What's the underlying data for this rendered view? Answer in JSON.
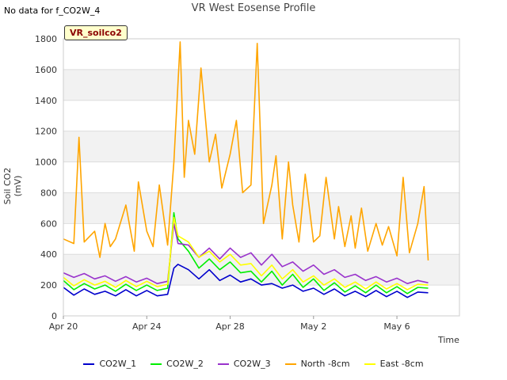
{
  "header": {
    "no_data_note": "No data for f_CO2W_4",
    "site_badge": "VR_soilco2"
  },
  "chart_data": {
    "type": "line",
    "title": "VR West Eosense Profile",
    "xlabel": "Time",
    "ylabel": "Soil CO2 (mV)",
    "xlim": [
      0,
      19
    ],
    "ylim": [
      0,
      1800
    ],
    "yticks": [
      0,
      200,
      400,
      600,
      800,
      1000,
      1200,
      1400,
      1600,
      1800
    ],
    "xticks": [
      {
        "pos": 0,
        "label": "Apr 20"
      },
      {
        "pos": 4,
        "label": "Apr 24"
      },
      {
        "pos": 8,
        "label": "Apr 28"
      },
      {
        "pos": 12,
        "label": "May 2"
      },
      {
        "pos": 16,
        "label": "May 6"
      }
    ],
    "grid": true,
    "legend_position": "bottom",
    "series": [
      {
        "name": "CO2W_1",
        "color": "#0000cc",
        "x": [
          0,
          0.5,
          1,
          1.5,
          2,
          2.5,
          3,
          3.5,
          4,
          4.5,
          5,
          5.3,
          5.5,
          6,
          6.5,
          7,
          7.5,
          8,
          8.5,
          9,
          9.5,
          10,
          10.5,
          11,
          11.5,
          12,
          12.5,
          13,
          13.5,
          14,
          14.5,
          15,
          15.5,
          16,
          16.5,
          17,
          17.5
        ],
        "y": [
          185,
          135,
          175,
          140,
          160,
          130,
          170,
          130,
          165,
          130,
          140,
          310,
          335,
          300,
          240,
          300,
          230,
          265,
          220,
          240,
          200,
          210,
          180,
          200,
          160,
          180,
          140,
          175,
          130,
          160,
          125,
          165,
          125,
          160,
          120,
          155,
          150
        ]
      },
      {
        "name": "CO2W_2",
        "color": "#00ee00",
        "x": [
          0,
          0.5,
          1,
          1.5,
          2,
          2.5,
          3,
          3.5,
          4,
          4.5,
          5,
          5.3,
          5.5,
          6,
          6.5,
          7,
          7.5,
          8,
          8.5,
          9,
          9.5,
          10,
          10.5,
          11,
          11.5,
          12,
          12.5,
          13,
          13.5,
          14,
          14.5,
          15,
          15.5,
          16,
          16.5,
          17,
          17.5
        ],
        "y": [
          230,
          170,
          210,
          175,
          200,
          160,
          205,
          165,
          200,
          165,
          180,
          670,
          500,
          420,
          310,
          370,
          300,
          350,
          280,
          290,
          220,
          290,
          200,
          270,
          185,
          240,
          165,
          215,
          155,
          195,
          150,
          200,
          150,
          190,
          145,
          185,
          180
        ]
      },
      {
        "name": "CO2W_3",
        "color": "#9933cc",
        "x": [
          0,
          0.5,
          1,
          1.5,
          2,
          2.5,
          3,
          3.5,
          4,
          4.5,
          5,
          5.3,
          5.5,
          6,
          6.5,
          7,
          7.5,
          8,
          8.5,
          9,
          9.5,
          10,
          10.5,
          11,
          11.5,
          12,
          12.5,
          13,
          13.5,
          14,
          14.5,
          15,
          15.5,
          16,
          16.5,
          17,
          17.5
        ],
        "y": [
          280,
          250,
          275,
          240,
          260,
          225,
          255,
          220,
          245,
          210,
          225,
          600,
          470,
          460,
          380,
          440,
          370,
          440,
          380,
          410,
          330,
          400,
          320,
          350,
          290,
          330,
          270,
          300,
          250,
          270,
          230,
          255,
          220,
          245,
          210,
          230,
          215
        ]
      },
      {
        "name": "North -8cm",
        "color": "#ffa500",
        "x": [
          0,
          0.5,
          0.75,
          1,
          1.5,
          1.75,
          2,
          2.25,
          2.5,
          3,
          3.4,
          3.6,
          4,
          4.3,
          4.6,
          5,
          5.3,
          5.6,
          5.8,
          6,
          6.3,
          6.6,
          7,
          7.3,
          7.6,
          8,
          8.3,
          8.6,
          9,
          9.3,
          9.6,
          10,
          10.2,
          10.5,
          10.8,
          11,
          11.3,
          11.6,
          12,
          12.3,
          12.6,
          13,
          13.2,
          13.5,
          13.8,
          14,
          14.3,
          14.6,
          15,
          15.3,
          15.6,
          16,
          16.3,
          16.6,
          17,
          17.3,
          17.5
        ],
        "y": [
          500,
          470,
          1160,
          480,
          550,
          380,
          600,
          450,
          500,
          720,
          420,
          870,
          550,
          450,
          850,
          460,
          1000,
          1780,
          900,
          1270,
          1050,
          1610,
          1000,
          1180,
          830,
          1050,
          1270,
          800,
          850,
          1770,
          600,
          850,
          1040,
          500,
          1000,
          720,
          480,
          920,
          480,
          520,
          900,
          500,
          710,
          450,
          650,
          440,
          700,
          420,
          600,
          460,
          580,
          390,
          900,
          410,
          600,
          840,
          360
        ]
      },
      {
        "name": "East -8cm",
        "color": "#ffff00",
        "x": [
          0,
          0.5,
          1,
          1.5,
          2,
          2.5,
          3,
          3.5,
          4,
          4.5,
          5,
          5.3,
          5.5,
          6,
          6.5,
          7,
          7.5,
          8,
          8.5,
          9,
          9.5,
          10,
          10.5,
          11,
          11.5,
          12,
          12.5,
          13,
          13.5,
          14,
          14.5,
          15,
          15.5,
          16,
          16.5,
          17,
          17.5
        ],
        "y": [
          250,
          195,
          235,
          200,
          225,
          185,
          230,
          190,
          225,
          190,
          205,
          640,
          520,
          480,
          380,
          420,
          350,
          400,
          330,
          340,
          260,
          330,
          240,
          300,
          220,
          260,
          200,
          240,
          185,
          220,
          175,
          220,
          175,
          210,
          170,
          205,
          200
        ]
      }
    ]
  }
}
